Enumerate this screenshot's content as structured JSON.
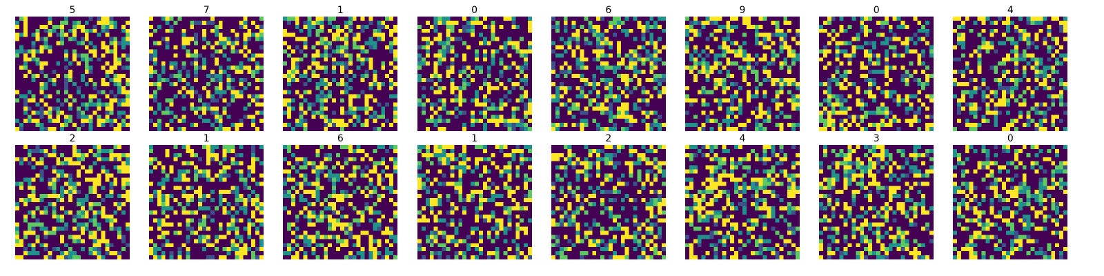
{
  "chart_data": {
    "type": "heatmap",
    "layout": {
      "rows": 2,
      "columns": 8
    },
    "grid_size": [
      28,
      28
    ],
    "axes_visible": false,
    "colormap": [
      "#440154",
      "#3b528b",
      "#21918c",
      "#5ec962",
      "#fde725"
    ],
    "value_range": [
      0,
      1
    ],
    "level_probabilities": [
      0.55,
      0.05,
      0.12,
      0.08,
      0.2
    ],
    "panels": [
      {
        "title": "5",
        "seed": 5011
      },
      {
        "title": "7",
        "seed": 7023
      },
      {
        "title": "1",
        "seed": 1031
      },
      {
        "title": "0",
        "seed": 47
      },
      {
        "title": "6",
        "seed": 6053
      },
      {
        "title": "9",
        "seed": 9061
      },
      {
        "title": "0",
        "seed": 79
      },
      {
        "title": "4",
        "seed": 4087
      },
      {
        "title": "2",
        "seed": 2093
      },
      {
        "title": "1",
        "seed": 1103
      },
      {
        "title": "6",
        "seed": 6113
      },
      {
        "title": "1",
        "seed": 1129
      },
      {
        "title": "2",
        "seed": 2137
      },
      {
        "title": "4",
        "seed": 4149
      },
      {
        "title": "3",
        "seed": 3157
      },
      {
        "title": "0",
        "seed": 167
      }
    ]
  }
}
